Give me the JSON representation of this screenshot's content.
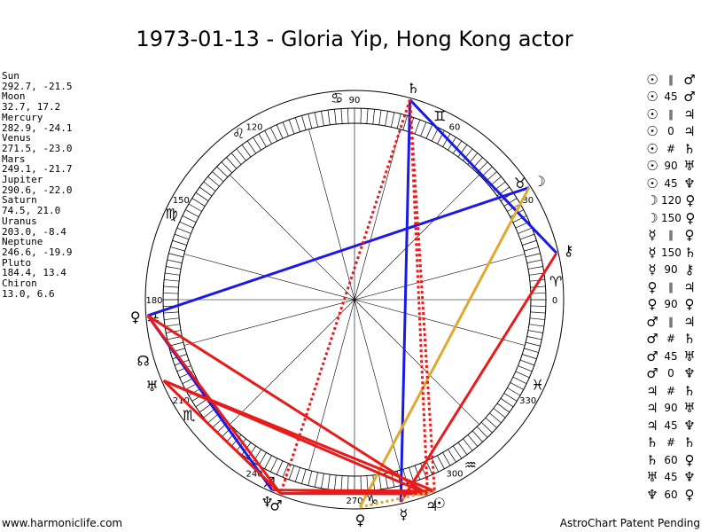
{
  "title": "1973-01-13 - Gloria Yip, Hong Kong actor",
  "planets": [
    {
      "name": "Sun",
      "coords": "292.7, -21.5"
    },
    {
      "name": "Moon",
      "coords": "32.7, 17.2"
    },
    {
      "name": "Mercury",
      "coords": "282.9, -24.1"
    },
    {
      "name": "Venus",
      "coords": "271.5, -23.0"
    },
    {
      "name": "Mars",
      "coords": "249.1, -21.7"
    },
    {
      "name": "Jupiter",
      "coords": "290.6, -22.0"
    },
    {
      "name": "Saturn",
      "coords": "74.5, 21.0"
    },
    {
      "name": "Uranus",
      "coords": "203.0, -8.4"
    },
    {
      "name": "Neptune",
      "coords": "246.6, -19.9"
    },
    {
      "name": "Pluto",
      "coords": "184.4, 13.4"
    },
    {
      "name": "Chiron",
      "coords": "13.0, 6.6"
    }
  ],
  "aspects": [
    {
      "p1": "☉",
      "sym": "∥",
      "p2": "♂"
    },
    {
      "p1": "☉",
      "sym": "45",
      "p2": "♂"
    },
    {
      "p1": "☉",
      "sym": "∥",
      "p2": "♃"
    },
    {
      "p1": "☉",
      "sym": "0",
      "p2": "♃"
    },
    {
      "p1": "☉",
      "sym": "#",
      "p2": "♄"
    },
    {
      "p1": "☉",
      "sym": "90",
      "p2": "♅"
    },
    {
      "p1": "☉",
      "sym": "45",
      "p2": "♆"
    },
    {
      "p1": "☽",
      "sym": "120",
      "p2": "♀"
    },
    {
      "p1": "☽",
      "sym": "150",
      "p2": "♀"
    },
    {
      "p1": "☿",
      "sym": "∥",
      "p2": "♀"
    },
    {
      "p1": "☿",
      "sym": "150",
      "p2": "♄"
    },
    {
      "p1": "☿",
      "sym": "90",
      "p2": "⚷"
    },
    {
      "p1": "♀",
      "sym": "∥",
      "p2": "♃"
    },
    {
      "p1": "♀",
      "sym": "90",
      "p2": "♀"
    },
    {
      "p1": "♂",
      "sym": "∥",
      "p2": "♃"
    },
    {
      "p1": "♂",
      "sym": "#",
      "p2": "♄"
    },
    {
      "p1": "♂",
      "sym": "45",
      "p2": "♅"
    },
    {
      "p1": "♂",
      "sym": "0",
      "p2": "♆"
    },
    {
      "p1": "♃",
      "sym": "#",
      "p2": "♄"
    },
    {
      "p1": "♃",
      "sym": "90",
      "p2": "♅"
    },
    {
      "p1": "♃",
      "sym": "45",
      "p2": "♆"
    },
    {
      "p1": "♄",
      "sym": "#",
      "p2": "♄"
    },
    {
      "p1": "♄",
      "sym": "60",
      "p2": "♀"
    },
    {
      "p1": "♅",
      "sym": "45",
      "p2": "♆"
    },
    {
      "p1": "♆",
      "sym": "60",
      "p2": "♀"
    }
  ],
  "degree_labels": [
    {
      "label": "0",
      "deg": 0
    },
    {
      "label": "30",
      "deg": 30
    },
    {
      "label": "60",
      "deg": 60
    },
    {
      "label": "90",
      "deg": 90
    },
    {
      "label": "120",
      "deg": 120
    },
    {
      "label": "150",
      "deg": 150
    },
    {
      "label": "180",
      "deg": 180
    },
    {
      "label": "210",
      "deg": 210
    },
    {
      "label": "240",
      "deg": 240
    },
    {
      "label": "270",
      "deg": 270
    },
    {
      "label": "300",
      "deg": 300
    },
    {
      "label": "330",
      "deg": 330
    }
  ],
  "zodiac_signs": [
    "♈",
    "♉",
    "♊",
    "♋",
    "♌",
    "♍",
    "♎",
    "♏",
    "♐",
    "♑",
    "♒",
    "♓"
  ],
  "chart_planets": [
    {
      "glyph": "♄",
      "deg": 74.5
    },
    {
      "glyph": "☽",
      "deg": 32.7
    },
    {
      "glyph": "⚷",
      "deg": 13.0
    },
    {
      "glyph": "♀",
      "deg": 184.4
    },
    {
      "glyph": "☊",
      "deg": 196.0
    },
    {
      "glyph": "♅",
      "deg": 203.0
    },
    {
      "glyph": "♆",
      "deg": 246.6
    },
    {
      "glyph": "♂",
      "deg": 249.1
    },
    {
      "glyph": "♀",
      "deg": 271.5
    },
    {
      "glyph": "☿",
      "deg": 282.9
    },
    {
      "glyph": "♃",
      "deg": 290.6
    },
    {
      "glyph": "☉",
      "deg": 292.7
    }
  ],
  "aspect_lines": [
    {
      "a": 74.5,
      "b": 13.0,
      "color": "#1a1ae6",
      "dash": false
    },
    {
      "a": 32.7,
      "b": 184.4,
      "color": "#1a1ae6",
      "dash": false
    },
    {
      "a": 184.4,
      "b": 246.6,
      "color": "#1a1ae6",
      "dash": false
    },
    {
      "a": 74.5,
      "b": 282.9,
      "color": "#1a1ae6",
      "dash": false
    },
    {
      "a": 32.7,
      "b": 271.5,
      "color": "#e0a830",
      "dash": false
    },
    {
      "a": 74.5,
      "b": 290.6,
      "color": "#e81a1a",
      "dash": true
    },
    {
      "a": 74.5,
      "b": 292.7,
      "color": "#e81a1a",
      "dash": true
    },
    {
      "a": 74.5,
      "b": 249.1,
      "color": "#e81a1a",
      "dash": true
    },
    {
      "a": 13.0,
      "b": 282.9,
      "color": "#e81a1a",
      "dash": false
    },
    {
      "a": 184.4,
      "b": 290.6,
      "color": "#e81a1a",
      "dash": false
    },
    {
      "a": 184.4,
      "b": 249.1,
      "color": "#e81a1a",
      "dash": false
    },
    {
      "a": 203.0,
      "b": 290.6,
      "color": "#e81a1a",
      "dash": false
    },
    {
      "a": 203.0,
      "b": 292.7,
      "color": "#e81a1a",
      "dash": false
    },
    {
      "a": 203.0,
      "b": 249.1,
      "color": "#e81a1a",
      "dash": false
    },
    {
      "a": 249.1,
      "b": 292.7,
      "color": "#e81a1a",
      "dash": false
    },
    {
      "a": 249.1,
      "b": 290.6,
      "color": "#e81a1a",
      "dash": false
    },
    {
      "a": 246.6,
      "b": 292.7,
      "color": "#e81a1a",
      "dash": false
    },
    {
      "a": 271.5,
      "b": 292.7,
      "color": "#e0a830",
      "dash": true
    }
  ],
  "footer": {
    "left": "www.harmoniclife.com",
    "right": "AstroChart Patent Pending"
  }
}
